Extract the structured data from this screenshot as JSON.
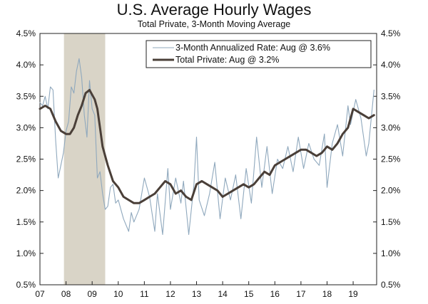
{
  "chart_data": {
    "type": "line",
    "title": "U.S. Average Hourly Wages",
    "subtitle": "Total Private, 3-Month Moving Average",
    "xlabel": "",
    "ylabel": "",
    "xlim": [
      2007.0,
      2019.9
    ],
    "ylim": [
      0.5,
      4.5
    ],
    "y_ticks": [
      "0.5%",
      "1.0%",
      "1.5%",
      "2.0%",
      "2.5%",
      "3.0%",
      "3.5%",
      "4.0%",
      "4.5%"
    ],
    "y_tick_values": [
      0.5,
      1.0,
      1.5,
      2.0,
      2.5,
      3.0,
      3.5,
      4.0,
      4.5
    ],
    "x_tick_labels": [
      "07",
      "08",
      "09",
      "10",
      "11",
      "12",
      "13",
      "14",
      "15",
      "16",
      "17",
      "18",
      "19"
    ],
    "x_tick_values": [
      2007,
      2008,
      2009,
      2010,
      2011,
      2012,
      2013,
      2014,
      2015,
      2016,
      2017,
      2018,
      2019
    ],
    "recession_shading": {
      "start": 2007.92,
      "end": 2009.5
    },
    "legend_position": "top-right",
    "colors": {
      "annualized": "#8fa8bd",
      "total": "#4a3f38",
      "recession": "#d9d4c7"
    },
    "series": [
      {
        "name": "3-Month Annualized Rate: Aug @ 3.6%",
        "style": "thin",
        "x": [
          2007.0,
          2007.1,
          2007.2,
          2007.3,
          2007.4,
          2007.5,
          2007.6,
          2007.7,
          2007.8,
          2007.9,
          2008.0,
          2008.1,
          2008.2,
          2008.3,
          2008.4,
          2008.5,
          2008.6,
          2008.7,
          2008.8,
          2008.9,
          2009.0,
          2009.1,
          2009.2,
          2009.3,
          2009.4,
          2009.5,
          2009.6,
          2009.7,
          2009.8,
          2009.9,
          2010.0,
          2010.2,
          2010.4,
          2010.5,
          2010.6,
          2010.8,
          2011.0,
          2011.2,
          2011.4,
          2011.5,
          2011.7,
          2011.9,
          2012.0,
          2012.2,
          2012.4,
          2012.5,
          2012.7,
          2012.9,
          2013.0,
          2013.1,
          2013.3,
          2013.5,
          2013.7,
          2013.9,
          2014.1,
          2014.3,
          2014.5,
          2014.7,
          2014.9,
          2015.1,
          2015.3,
          2015.5,
          2015.7,
          2015.9,
          2016.1,
          2016.3,
          2016.5,
          2016.7,
          2016.9,
          2017.1,
          2017.3,
          2017.5,
          2017.7,
          2017.9,
          2018.0,
          2018.2,
          2018.4,
          2018.6,
          2018.8,
          2018.9,
          2019.1,
          2019.3,
          2019.5,
          2019.6,
          2019.8
        ],
        "values": [
          3.4,
          3.35,
          3.5,
          3.3,
          3.65,
          3.6,
          2.8,
          2.2,
          2.4,
          2.6,
          2.95,
          3.1,
          3.65,
          3.55,
          3.9,
          4.1,
          3.8,
          3.2,
          2.85,
          3.75,
          3.3,
          3.2,
          2.2,
          2.3,
          1.95,
          1.7,
          1.75,
          2.05,
          2.1,
          1.8,
          1.85,
          1.55,
          1.35,
          1.65,
          1.5,
          1.7,
          2.2,
          1.9,
          1.35,
          1.95,
          1.3,
          2.35,
          1.7,
          2.2,
          1.8,
          2.15,
          1.3,
          2.1,
          2.85,
          1.85,
          1.6,
          1.95,
          2.45,
          1.55,
          2.2,
          1.85,
          2.25,
          1.55,
          2.35,
          1.8,
          2.85,
          2.05,
          2.7,
          1.95,
          2.5,
          2.35,
          2.7,
          2.3,
          2.85,
          2.35,
          2.75,
          2.5,
          2.4,
          2.9,
          2.05,
          2.75,
          3.05,
          2.55,
          3.35,
          3.05,
          3.45,
          3.15,
          2.55,
          2.75,
          3.6
        ]
      },
      {
        "name": "Total Private: Aug @ 3.2%",
        "style": "thick",
        "x": [
          2007.0,
          2007.2,
          2007.4,
          2007.6,
          2007.8,
          2008.0,
          2008.15,
          2008.3,
          2008.45,
          2008.6,
          2008.75,
          2008.9,
          2009.1,
          2009.2,
          2009.3,
          2009.4,
          2009.6,
          2009.8,
          2010.0,
          2010.2,
          2010.4,
          2010.6,
          2010.8,
          2011.0,
          2011.2,
          2011.4,
          2011.6,
          2011.8,
          2012.0,
          2012.2,
          2012.4,
          2012.6,
          2012.8,
          2013.0,
          2013.2,
          2013.4,
          2013.6,
          2013.8,
          2014.0,
          2014.2,
          2014.4,
          2014.6,
          2014.8,
          2015.0,
          2015.2,
          2015.4,
          2015.6,
          2015.8,
          2016.0,
          2016.2,
          2016.4,
          2016.6,
          2016.8,
          2017.0,
          2017.2,
          2017.4,
          2017.6,
          2017.8,
          2018.0,
          2018.2,
          2018.4,
          2018.6,
          2018.8,
          2019.0,
          2019.2,
          2019.4,
          2019.6,
          2019.8
        ],
        "values": [
          3.3,
          3.35,
          3.3,
          3.1,
          2.95,
          2.9,
          2.9,
          3.0,
          3.2,
          3.35,
          3.55,
          3.6,
          3.45,
          3.3,
          3.0,
          2.7,
          2.4,
          2.15,
          2.05,
          1.9,
          1.85,
          1.8,
          1.8,
          1.85,
          1.9,
          1.95,
          2.05,
          2.15,
          2.1,
          1.95,
          2.0,
          1.9,
          1.85,
          2.1,
          2.15,
          2.1,
          2.05,
          2.0,
          1.9,
          1.95,
          2.0,
          2.05,
          2.1,
          2.05,
          2.1,
          2.2,
          2.3,
          2.25,
          2.4,
          2.45,
          2.5,
          2.55,
          2.6,
          2.65,
          2.65,
          2.6,
          2.55,
          2.6,
          2.7,
          2.65,
          2.75,
          2.9,
          3.0,
          3.3,
          3.25,
          3.2,
          3.15,
          3.2
        ]
      }
    ]
  }
}
